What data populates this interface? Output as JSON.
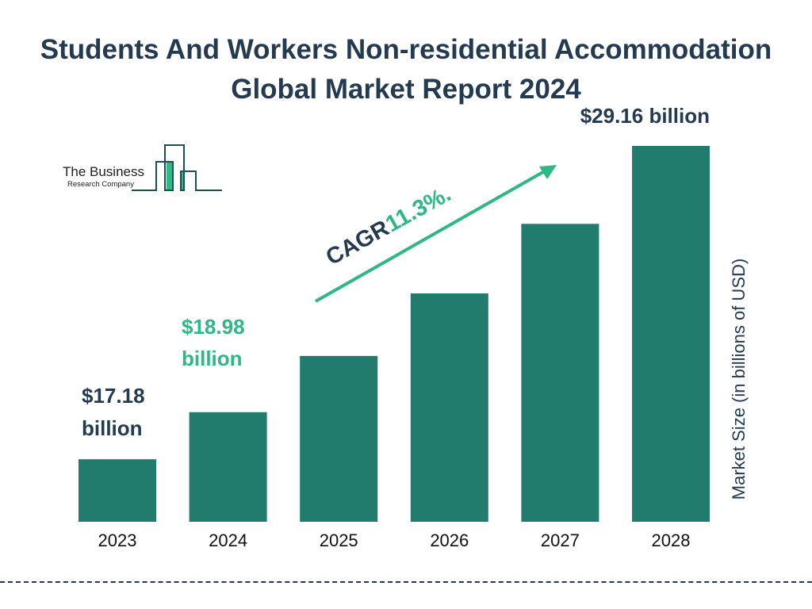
{
  "title": "Students And Workers Non-residential Accommodation Global Market Report 2024",
  "logo": {
    "line1": "The Business",
    "line2": "Research Company"
  },
  "colors": {
    "bar": "#217c6e",
    "accent": "#2fb785",
    "text": "#233a50"
  },
  "cagr": {
    "label": "CAGR",
    "value": "11.3%."
  },
  "chart_data": {
    "type": "bar",
    "categories": [
      "2023",
      "2024",
      "2025",
      "2026",
      "2027",
      "2028"
    ],
    "values": [
      17.18,
      18.98,
      21.13,
      23.52,
      26.18,
      29.16
    ],
    "ylabel": "Market Size (in billions of USD)",
    "ylim": [
      14.79,
      29.16
    ],
    "grid": false,
    "data_labels": [
      {
        "category": "2023",
        "line1": "$17.18",
        "line2": "billion"
      },
      {
        "category": "2024",
        "line1": "$18.98",
        "line2": "billion"
      },
      {
        "category": "2028",
        "line1": "$29.16 billion"
      }
    ]
  }
}
